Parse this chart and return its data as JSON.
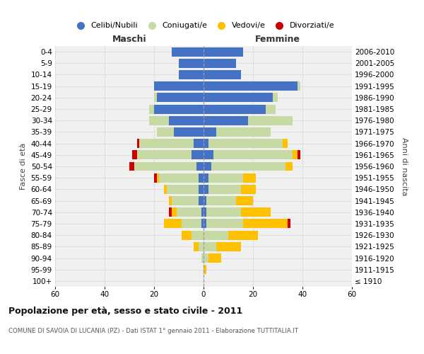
{
  "age_groups": [
    "100+",
    "95-99",
    "90-94",
    "85-89",
    "80-84",
    "75-79",
    "70-74",
    "65-69",
    "60-64",
    "55-59",
    "50-54",
    "45-49",
    "40-44",
    "35-39",
    "30-34",
    "25-29",
    "20-24",
    "15-19",
    "10-14",
    "5-9",
    "0-4"
  ],
  "birth_years": [
    "≤ 1910",
    "1911-1915",
    "1916-1920",
    "1921-1925",
    "1926-1930",
    "1931-1935",
    "1936-1940",
    "1941-1945",
    "1946-1950",
    "1951-1955",
    "1956-1960",
    "1961-1965",
    "1966-1970",
    "1971-1975",
    "1976-1980",
    "1981-1985",
    "1986-1990",
    "1991-1995",
    "1996-2000",
    "2001-2005",
    "2006-2010"
  ],
  "male": {
    "celibi": [
      0,
      0,
      0,
      0,
      0,
      1,
      1,
      2,
      2,
      2,
      3,
      5,
      4,
      12,
      14,
      20,
      19,
      20,
      10,
      10,
      13
    ],
    "coniugati": [
      0,
      0,
      1,
      2,
      5,
      8,
      10,
      11,
      13,
      16,
      25,
      22,
      22,
      7,
      8,
      2,
      1,
      0,
      0,
      0,
      0
    ],
    "vedovi": [
      0,
      0,
      0,
      2,
      4,
      7,
      2,
      1,
      1,
      1,
      0,
      0,
      0,
      0,
      0,
      0,
      0,
      0,
      0,
      0,
      0
    ],
    "divorziati": [
      0,
      0,
      0,
      0,
      0,
      0,
      1,
      0,
      0,
      1,
      2,
      2,
      1,
      0,
      0,
      0,
      0,
      0,
      0,
      0,
      0
    ]
  },
  "female": {
    "nubili": [
      0,
      0,
      0,
      0,
      0,
      1,
      1,
      1,
      2,
      2,
      3,
      4,
      2,
      5,
      18,
      25,
      28,
      38,
      15,
      13,
      16
    ],
    "coniugate": [
      0,
      0,
      2,
      5,
      10,
      15,
      14,
      12,
      13,
      14,
      30,
      32,
      30,
      22,
      18,
      4,
      2,
      1,
      0,
      0,
      0
    ],
    "vedove": [
      0,
      1,
      5,
      10,
      12,
      18,
      12,
      7,
      6,
      5,
      3,
      2,
      2,
      0,
      0,
      0,
      0,
      0,
      0,
      0,
      0
    ],
    "divorziate": [
      0,
      0,
      0,
      0,
      0,
      1,
      0,
      0,
      0,
      0,
      0,
      1,
      0,
      0,
      0,
      0,
      0,
      0,
      0,
      0,
      0
    ]
  },
  "colors": {
    "celibi_nubili": "#4472c4",
    "coniugati": "#c8daa4",
    "vedovi": "#ffc000",
    "divorziati": "#cc0000"
  },
  "title": "Popolazione per età, sesso e stato civile - 2011",
  "subtitle": "COMUNE DI SAVOIA DI LUCANIA (PZ) - Dati ISTAT 1° gennaio 2011 - Elaborazione TUTTITALIA.IT",
  "xlabel_left": "Maschi",
  "xlabel_right": "Femmine",
  "ylabel_left": "Fasce di età",
  "ylabel_right": "Anni di nascita",
  "xlim": 60,
  "bg_color": "#ffffff",
  "plot_bg": "#f0f0f0",
  "grid_color": "#cccccc",
  "legend_labels": [
    "Celibi/Nubili",
    "Coniugati/e",
    "Vedovi/e",
    "Divorziati/e"
  ]
}
